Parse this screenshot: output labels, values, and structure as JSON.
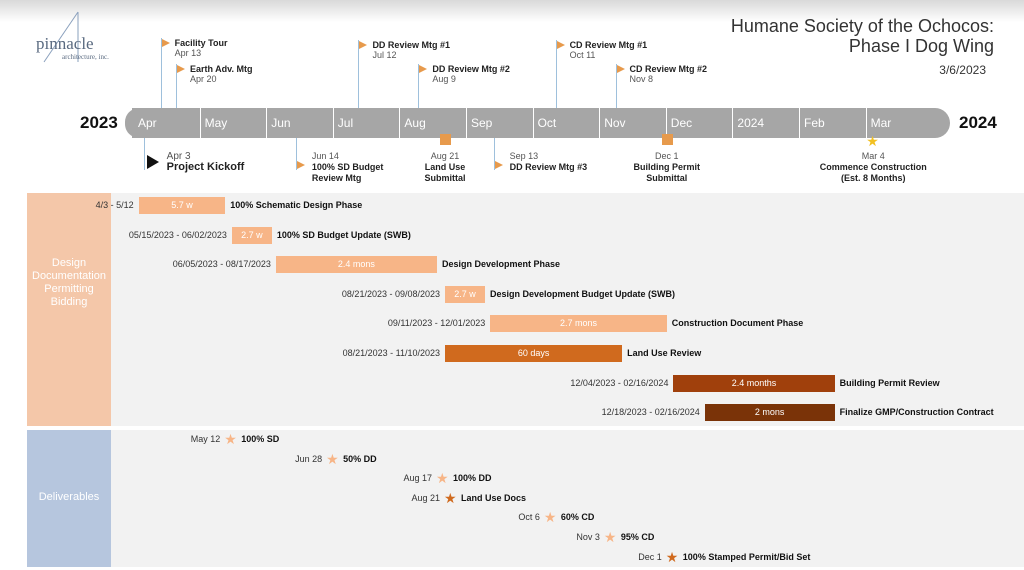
{
  "logo": {
    "main": "pinnacle",
    "sub": "architecture, inc."
  },
  "header": {
    "title_line1": "Humane Society of the Ochocos:",
    "title_line2": "Phase I Dog Wing",
    "date": "3/6/2023"
  },
  "colors": {
    "light": "#f7b587",
    "mid": "#d06a1e",
    "dark": "#a0400c",
    "darker": "#7a3308",
    "flag": "#e79a4c",
    "bar": "#a6a6a6"
  },
  "chart_data": {
    "type": "gantt",
    "title": "Humane Society of the Ochocos: Phase I Dog Wing",
    "timeline": {
      "start_year": "2023",
      "end_year": "2024",
      "months": [
        "Apr",
        "May",
        "Jun",
        "Jul",
        "Aug",
        "Sep",
        "Oct",
        "Nov",
        "Dec",
        "2024",
        "Feb",
        "Mar"
      ]
    },
    "milestones_above": [
      {
        "name": "Facility Tour",
        "date": "Apr 13",
        "month": 0.4
      },
      {
        "name": "Earth Adv. Mtg",
        "date": "Apr 20",
        "month": 0.63
      },
      {
        "name": "DD Review Mtg #1",
        "date": "Jul 12",
        "month": 3.37
      },
      {
        "name": "DD Review Mtg #2",
        "date": "Aug 9",
        "month": 4.27
      },
      {
        "name": "CD Review Mtg #1",
        "date": "Oct 11",
        "month": 6.33
      },
      {
        "name": "CD Review Mtg #2",
        "date": "Nov 8",
        "month": 7.23
      }
    ],
    "milestones_below": [
      {
        "name": "Project Kickoff",
        "date": "Apr 3",
        "month": 0.07,
        "marker": "triangle",
        "align": "left"
      },
      {
        "name": "100% SD Budget\nReview Mtg",
        "date": "Jun 14",
        "month": 2.43,
        "marker": "flag",
        "align": "left"
      },
      {
        "name": "Land Use\nSubmittal",
        "date": "Aug 21",
        "month": 4.67,
        "marker": "square",
        "align": "center"
      },
      {
        "name": "DD Review Mtg #3",
        "date": "Sep 13",
        "month": 5.4,
        "marker": "flag",
        "align": "left"
      },
      {
        "name": "Building Permit\nSubmittal",
        "date": "Dec 1",
        "month": 8.0,
        "marker": "square",
        "align": "center"
      },
      {
        "name": "Commence Construction\n(Est. 8 Months)",
        "date": "Mar 4",
        "month": 11.1,
        "marker": "star",
        "align": "center"
      }
    ],
    "sections": [
      {
        "name": "Design\nDocumentation\nPermitting\nBidding"
      },
      {
        "name": "Deliverables"
      }
    ],
    "tasks": [
      {
        "dates": "4/3 - 5/12",
        "duration": "5.7 w",
        "name": "100% Schematic Design Phase",
        "start": 0.07,
        "end": 1.37,
        "color": "light"
      },
      {
        "dates": "05/15/2023 - 06/02/2023",
        "duration": "2.7 w",
        "name": "100% SD Budget Update (SWB)",
        "start": 1.47,
        "end": 2.07,
        "color": "light"
      },
      {
        "dates": "06/05/2023 - 08/17/2023",
        "duration": "2.4 mons",
        "name": "Design Development Phase",
        "start": 2.13,
        "end": 4.55,
        "color": "light"
      },
      {
        "dates": "08/21/2023 - 09/08/2023",
        "duration": "2.7 w",
        "name": "Design Development Budget Update (SWB)",
        "start": 4.67,
        "end": 5.27,
        "color": "light"
      },
      {
        "dates": "09/11/2023 - 12/01/2023",
        "duration": "2.7 mons",
        "name": "Construction Document Phase",
        "start": 5.35,
        "end": 8.0,
        "color": "light"
      },
      {
        "dates": "08/21/2023 - 11/10/2023",
        "duration": "60 days",
        "name": "Land Use Review",
        "start": 4.67,
        "end": 7.33,
        "color": "mid"
      },
      {
        "dates": "12/04/2023 - 02/16/2024",
        "duration": "2.4 months",
        "name": "Building Permit Review",
        "start": 8.1,
        "end": 10.52,
        "color": "dark"
      },
      {
        "dates": "12/18/2023 - 02/16/2024",
        "duration": "2 mons",
        "name": "Finalize GMP/Construction Contract",
        "start": 8.57,
        "end": 10.52,
        "color": "darker"
      }
    ],
    "deliverables": [
      {
        "date": "May 12",
        "name": "100% SD",
        "month": 1.37,
        "color": "light"
      },
      {
        "date": "Jun 28",
        "name": "50% DD",
        "month": 2.9,
        "color": "light"
      },
      {
        "date": "Aug 17",
        "name": "100% DD",
        "month": 4.55,
        "color": "light"
      },
      {
        "date": "Aug 21",
        "name": "Land Use Docs",
        "month": 4.67,
        "color": "mid"
      },
      {
        "date": "Oct 6",
        "name": "60% CD",
        "month": 6.17,
        "color": "light"
      },
      {
        "date": "Nov 3",
        "name": "95% CD",
        "month": 7.07,
        "color": "light"
      },
      {
        "date": "Dec 1",
        "name": "100% Stamped Permit/Bid Set",
        "month": 8.0,
        "color": "mid"
      }
    ]
  }
}
